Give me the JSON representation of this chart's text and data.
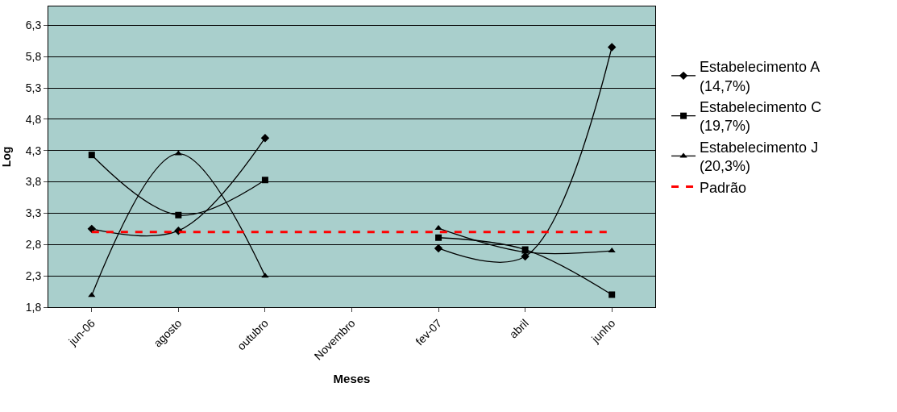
{
  "chart_data": {
    "type": "line",
    "xlabel": "Meses",
    "ylabel": "Log",
    "categories": [
      "jun-06",
      "agosto",
      "outubro",
      "Novembro",
      "fev-07",
      "abril",
      "junho"
    ],
    "series": [
      {
        "name": "Estabelecimento A\n(14,7%)",
        "color": "#000000",
        "marker": "diamond",
        "values": [
          3.05,
          3.02,
          4.5,
          null,
          2.74,
          2.61,
          5.95
        ]
      },
      {
        "name": "Estabelecimento C\n(19,7%)",
        "color": "#000000",
        "marker": "square",
        "values": [
          4.23,
          3.27,
          3.83,
          null,
          2.91,
          2.72,
          2.0
        ]
      },
      {
        "name": "Estabelecimento J\n(20,3%)",
        "color": "#000000",
        "marker": "triangle",
        "values": [
          1.99,
          4.25,
          2.3,
          null,
          3.06,
          2.68,
          2.7
        ]
      }
    ],
    "ref_lines": [
      {
        "axis": "y",
        "value": 3.0,
        "label": "Padrão",
        "color": "#ff0000",
        "line_style": "dashed"
      }
    ],
    "ylim": [
      1.8,
      6.6
    ],
    "yticks": [
      {
        "value": 1.8,
        "label": "1,8"
      },
      {
        "value": 2.3,
        "label": "2,3"
      },
      {
        "value": 2.8,
        "label": "2,8"
      },
      {
        "value": 3.3,
        "label": "3,3"
      },
      {
        "value": 3.8,
        "label": "3,8"
      },
      {
        "value": 4.3,
        "label": "4,3"
      },
      {
        "value": 4.8,
        "label": "4,8"
      },
      {
        "value": 5.3,
        "label": "5,3"
      },
      {
        "value": 5.8,
        "label": "5,8"
      },
      {
        "value": 6.3,
        "label": "6,3"
      }
    ],
    "grid": "y",
    "legend": "right"
  }
}
